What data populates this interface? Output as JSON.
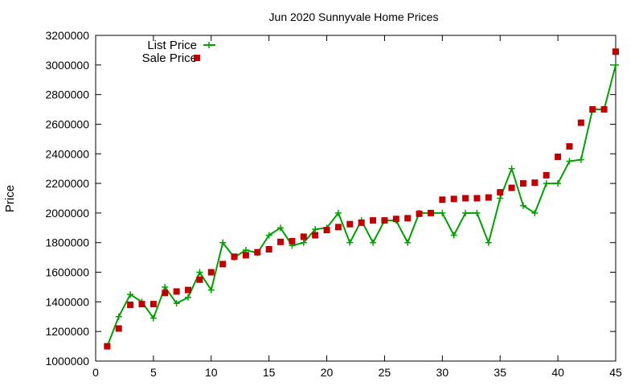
{
  "chart_data": {
    "type": "line",
    "title": "Jun 2020 Sunnyvale Home Prices",
    "xlabel": "",
    "ylabel": "Price",
    "xlim": [
      0,
      45
    ],
    "ylim": [
      1000000,
      3200000
    ],
    "xticks": [
      0,
      5,
      10,
      15,
      20,
      25,
      30,
      35,
      40,
      45
    ],
    "yticks": [
      1000000,
      1200000,
      1400000,
      1600000,
      1800000,
      2000000,
      2200000,
      2400000,
      2600000,
      2800000,
      3000000,
      3200000
    ],
    "grid": false,
    "legend_position": "top-left",
    "series": [
      {
        "name": "List Price",
        "style": "line-points",
        "marker": "plus",
        "color": "#00a000",
        "x": [
          1,
          2,
          3,
          4,
          5,
          6,
          7,
          8,
          9,
          10,
          11,
          12,
          13,
          14,
          15,
          16,
          17,
          18,
          19,
          20,
          21,
          22,
          23,
          24,
          25,
          26,
          27,
          28,
          29,
          30,
          31,
          32,
          33,
          34,
          35,
          36,
          37,
          38,
          39,
          40,
          41,
          42,
          43,
          44,
          45
        ],
        "y": [
          1100000,
          1300000,
          1450000,
          1400000,
          1290000,
          1500000,
          1390000,
          1430000,
          1600000,
          1480000,
          1800000,
          1700000,
          1750000,
          1730000,
          1850000,
          1900000,
          1780000,
          1800000,
          1890000,
          1900000,
          2000000,
          1800000,
          1950000,
          1800000,
          1950000,
          1950000,
          1800000,
          2000000,
          2000000,
          2000000,
          1850000,
          2000000,
          2000000,
          1800000,
          2100000,
          2300000,
          2050000,
          2000000,
          2200000,
          2200000,
          2350000,
          2360000,
          2700000,
          2700000,
          3000000
        ]
      },
      {
        "name": "Sale Price",
        "style": "points",
        "marker": "square",
        "color": "#c00000",
        "x": [
          1,
          2,
          3,
          4,
          5,
          6,
          7,
          8,
          9,
          10,
          11,
          12,
          13,
          14,
          15,
          16,
          17,
          18,
          19,
          20,
          21,
          22,
          23,
          24,
          25,
          26,
          27,
          28,
          29,
          30,
          31,
          32,
          33,
          34,
          35,
          36,
          37,
          38,
          39,
          40,
          41,
          42,
          43,
          44,
          45
        ],
        "y": [
          1100000,
          1220000,
          1380000,
          1385000,
          1385000,
          1460000,
          1470000,
          1480000,
          1550000,
          1600000,
          1655000,
          1705000,
          1715000,
          1735000,
          1755000,
          1805000,
          1810000,
          1840000,
          1850000,
          1885000,
          1905000,
          1925000,
          1935000,
          1950000,
          1950000,
          1960000,
          1965000,
          1995000,
          2000000,
          2090000,
          2095000,
          2100000,
          2100000,
          2105000,
          2140000,
          2170000,
          2200000,
          2205000,
          2255000,
          2380000,
          2450000,
          2610000,
          2700000,
          2700000,
          3090000
        ]
      }
    ]
  }
}
